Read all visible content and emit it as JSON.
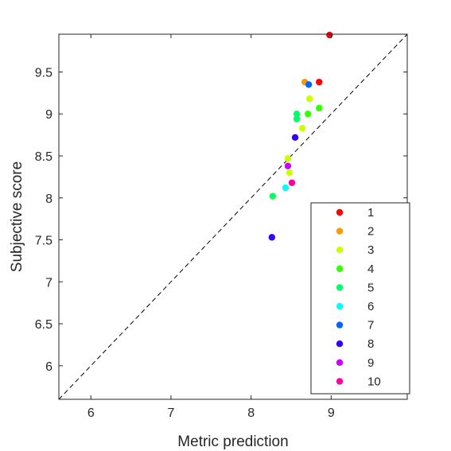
{
  "chart_data": {
    "type": "scatter",
    "title": "",
    "xlabel": "Metric prediction",
    "ylabel": "Subjective score",
    "xlim": [
      5.6,
      9.95
    ],
    "ylim": [
      5.6,
      9.95
    ],
    "x_ticks": [
      6,
      7,
      8,
      9
    ],
    "y_ticks": [
      6,
      6.5,
      7,
      7.5,
      8,
      8.5,
      9,
      9.5
    ],
    "x_tick_labels": [
      "6",
      "7",
      "8",
      "9"
    ],
    "y_tick_labels": [
      "6",
      "6.5",
      "7",
      "7.5",
      "8",
      "8.5",
      "9",
      "9.5"
    ],
    "grid": false,
    "reference_line": "y = x (dashed)",
    "legend_position": "bottom-right",
    "series": [
      {
        "name": "1",
        "color": "#ff0000",
        "points": [
          [
            8.98,
            9.94
          ],
          [
            8.85,
            9.38
          ]
        ]
      },
      {
        "name": "2",
        "color": "#ff9900",
        "points": [
          [
            8.67,
            9.38
          ]
        ]
      },
      {
        "name": "3",
        "color": "#ccff00",
        "points": [
          [
            8.73,
            9.18
          ],
          [
            8.64,
            8.83
          ],
          [
            8.46,
            8.47
          ],
          [
            8.48,
            8.3
          ]
        ]
      },
      {
        "name": "4",
        "color": "#33ff00",
        "points": [
          [
            8.85,
            9.07
          ],
          [
            8.71,
            9.0
          ]
        ]
      },
      {
        "name": "5",
        "color": "#00ff66",
        "points": [
          [
            8.57,
            9.0
          ],
          [
            8.57,
            8.94
          ],
          [
            8.27,
            8.02
          ]
        ]
      },
      {
        "name": "6",
        "color": "#00ffff",
        "points": [
          [
            8.43,
            8.12
          ]
        ]
      },
      {
        "name": "7",
        "color": "#0066ff",
        "points": [
          [
            8.72,
            9.35
          ]
        ]
      },
      {
        "name": "8",
        "color": "#3300ff",
        "points": [
          [
            8.55,
            8.72
          ],
          [
            8.26,
            7.53
          ]
        ]
      },
      {
        "name": "9",
        "color": "#cc00ff",
        "points": [
          [
            8.46,
            8.38
          ]
        ]
      },
      {
        "name": "10",
        "color": "#ff0099",
        "points": [
          [
            8.51,
            8.18
          ]
        ]
      }
    ]
  }
}
